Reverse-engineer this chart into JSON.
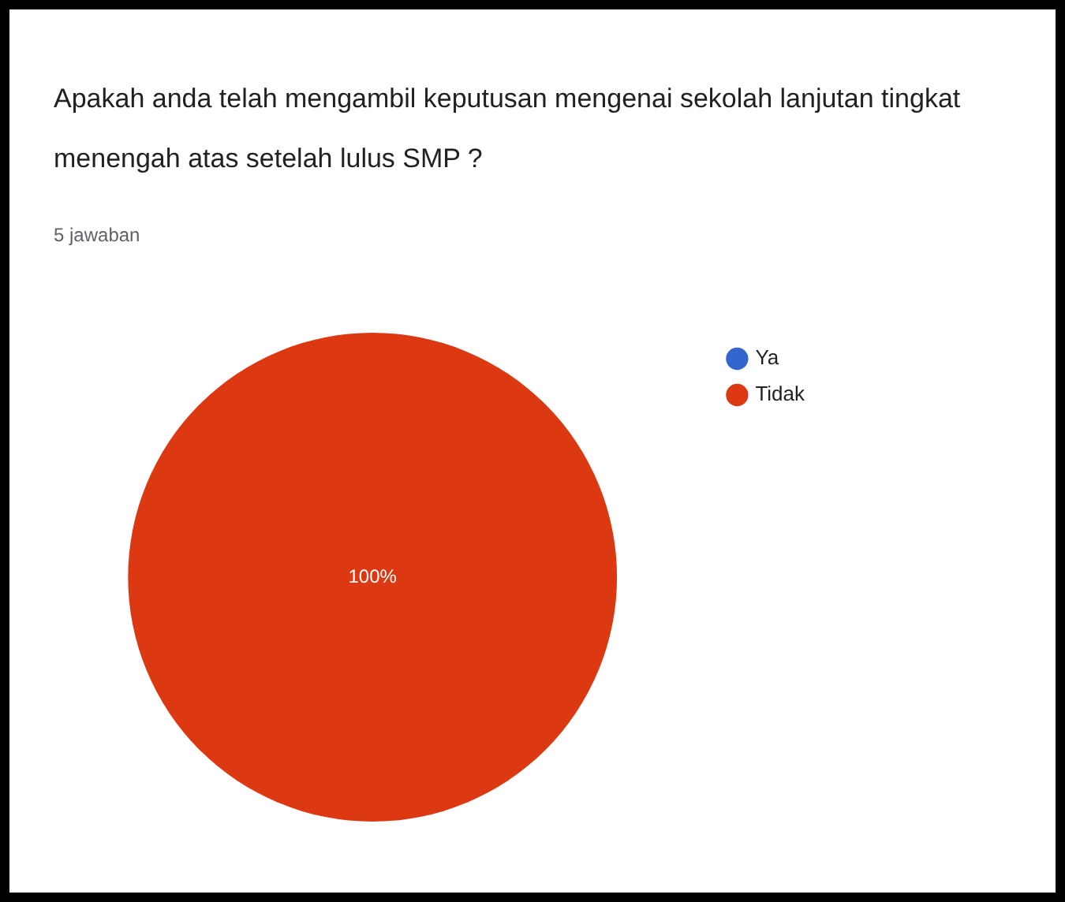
{
  "chart_data": {
    "type": "pie",
    "title": "Apakah anda telah mengambil keputusan mengenai sekolah lanjutan tingkat menengah atas setelah lulus SMP ?",
    "subtitle": "5 jawaban",
    "categories": [
      "Ya",
      "Tidak"
    ],
    "values": [
      0,
      100
    ],
    "colors": [
      "#3366cc",
      "#dc3912"
    ],
    "value_labels": [
      null,
      "100%"
    ],
    "legend": "right"
  }
}
